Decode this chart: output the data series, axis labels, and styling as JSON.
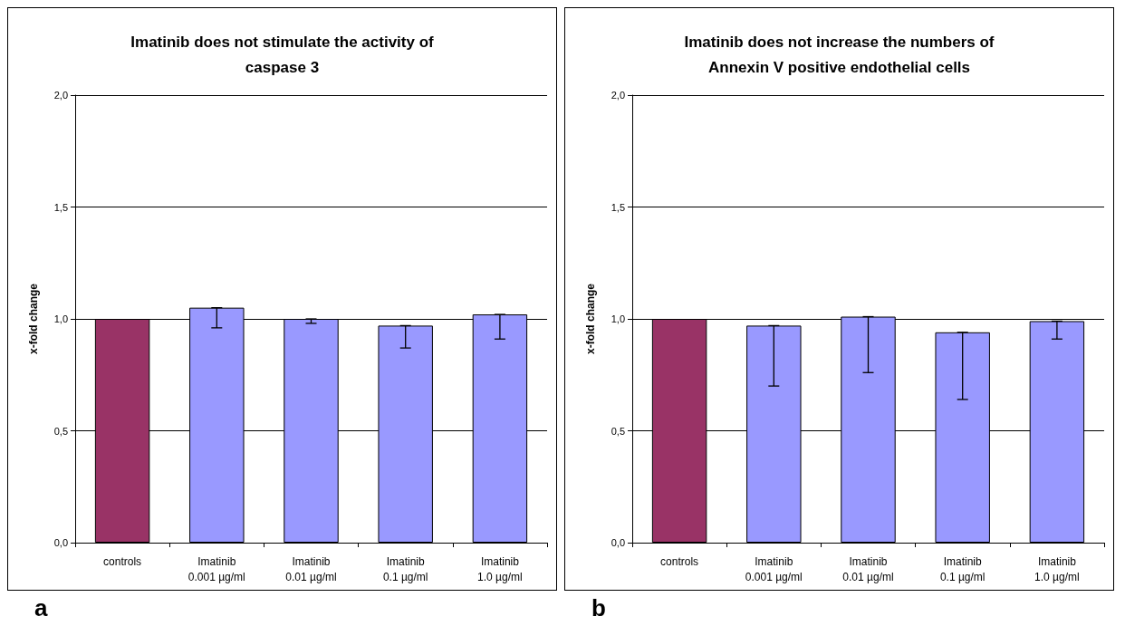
{
  "chart_data": [
    {
      "type": "bar",
      "title": "Imatinib does not stimulate the activity of\ncaspase 3",
      "ylabel": "x-fold change",
      "categories": [
        "controls",
        "Imatinib\n0.001 µg/ml",
        "Imatinib\n0.01 µg/ml",
        "Imatinib\n0.1 µg/ml",
        "Imatinib\n1.0 µg/ml"
      ],
      "values": [
        1.0,
        1.05,
        1.0,
        0.97,
        1.02
      ],
      "colors": [
        "#993366",
        "#9999ff",
        "#9999ff",
        "#9999ff",
        "#9999ff"
      ],
      "errors": [
        null,
        [
          0.96,
          1.05
        ],
        [
          0.98,
          1.0
        ],
        [
          0.87,
          0.97
        ],
        [
          0.91,
          1.02
        ]
      ],
      "ylim": [
        0,
        2
      ],
      "yticks": [
        {
          "value": 0,
          "label": "0,0"
        },
        {
          "value": 0.5,
          "label": "0,5"
        },
        {
          "value": 1,
          "label": "1,0"
        },
        {
          "value": 1.5,
          "label": "1,5"
        },
        {
          "value": 2,
          "label": "2,0"
        }
      ],
      "grid": "y",
      "annotations": [
        "a"
      ]
    },
    {
      "type": "bar",
      "title": "Imatinib does not increase the numbers of\nAnnexin V positive endothelial cells",
      "ylabel": "x-fold change",
      "categories": [
        "controls",
        "Imatinib\n0.001 µg/ml",
        "Imatinib\n0.01 µg/ml",
        "Imatinib\n0.1 µg/ml",
        "Imatinib\n1.0 µg/ml"
      ],
      "values": [
        1.0,
        0.97,
        1.01,
        0.94,
        0.99
      ],
      "colors": [
        "#993366",
        "#9999ff",
        "#9999ff",
        "#9999ff",
        "#9999ff"
      ],
      "errors": [
        null,
        [
          0.7,
          0.97
        ],
        [
          0.76,
          1.01
        ],
        [
          0.64,
          0.94
        ],
        [
          0.91,
          0.99
        ]
      ],
      "ylim": [
        0,
        2
      ],
      "yticks": [
        {
          "value": 0,
          "label": "0,0"
        },
        {
          "value": 0.5,
          "label": "0,5"
        },
        {
          "value": 1,
          "label": "1,0"
        },
        {
          "value": 1.5,
          "label": "1,5"
        },
        {
          "value": 2,
          "label": "2,0"
        }
      ],
      "grid": "y",
      "annotations": [
        "b"
      ]
    }
  ]
}
